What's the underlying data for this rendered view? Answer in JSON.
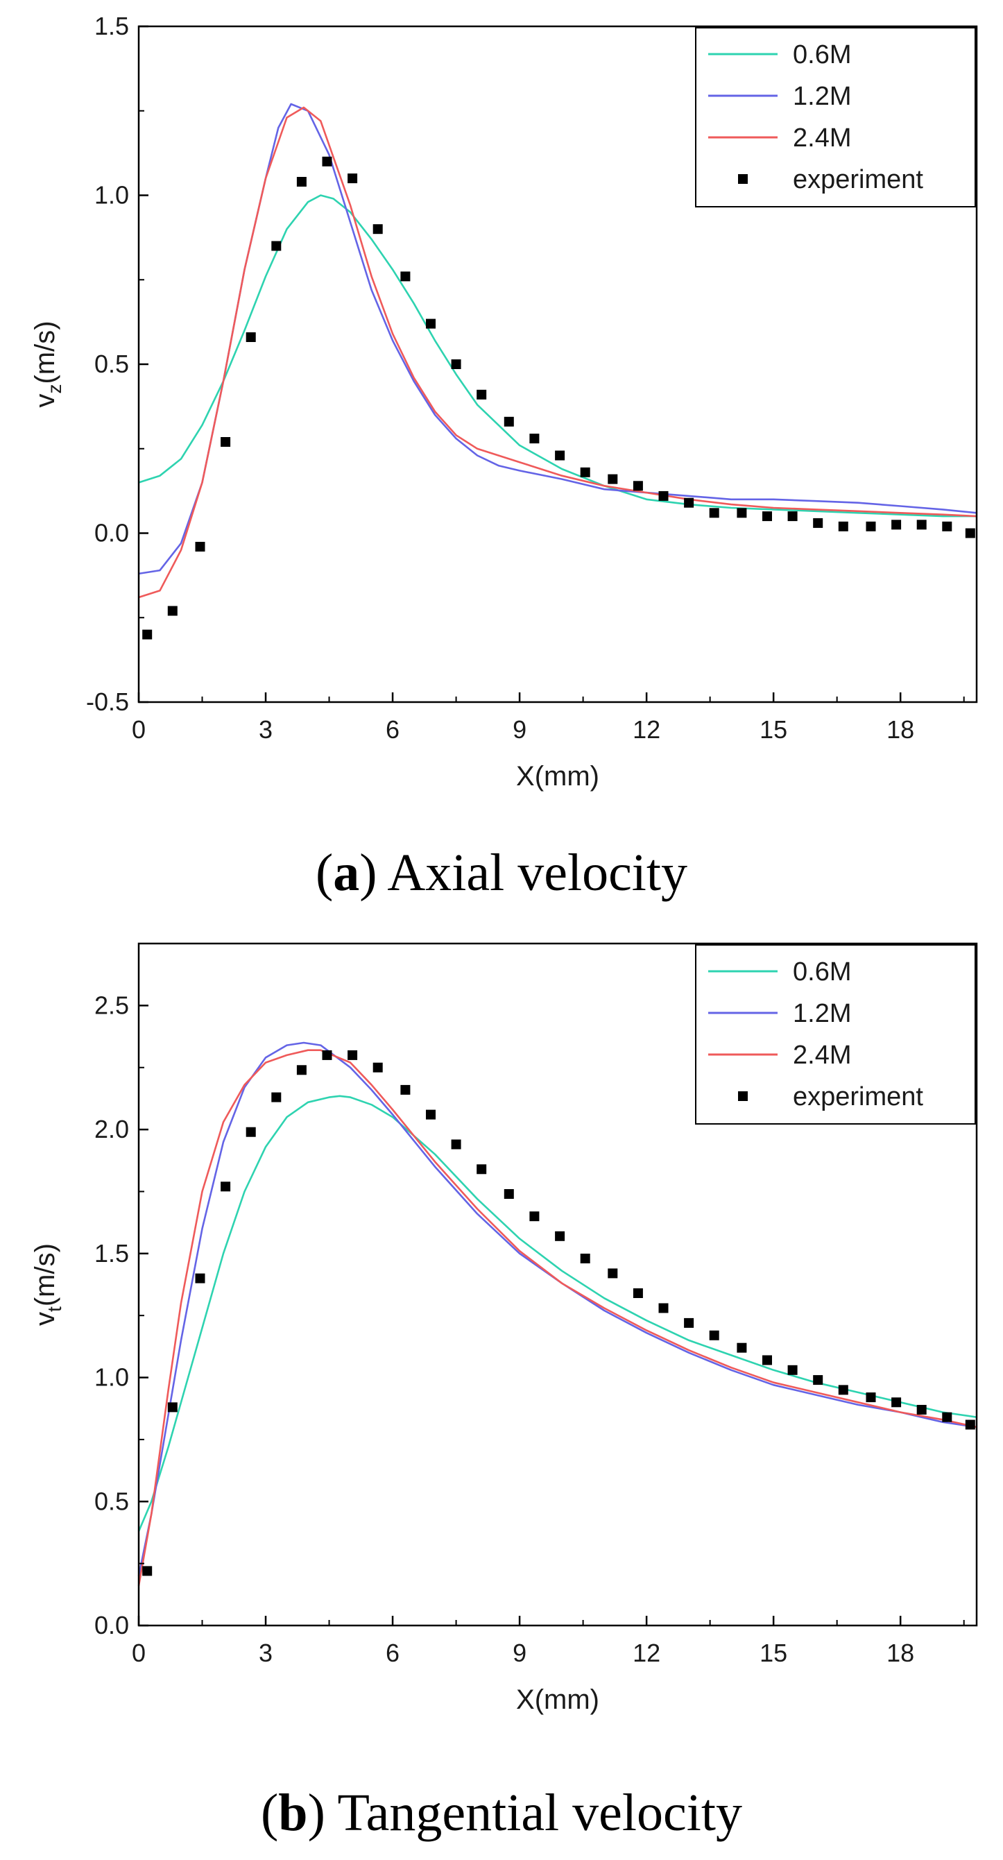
{
  "chart_data": [
    {
      "type": "line",
      "panel_id": "a",
      "caption": {
        "letter": "a",
        "text": "Axial velocity"
      },
      "xlabel": "X(mm)",
      "ylabel": {
        "base": "v",
        "sub": "z",
        "unit": "(m/s)"
      },
      "xlim": [
        0,
        19.8
      ],
      "ylim": [
        -0.5,
        1.5
      ],
      "xticks": [
        0,
        3,
        6,
        9,
        12,
        15,
        18
      ],
      "yticks": [
        -0.5,
        0.0,
        0.5,
        1.0,
        1.5
      ],
      "ytick_labels": [
        "-0.5",
        "0.0",
        "0.5",
        "1.0",
        "1.5"
      ],
      "legend": {
        "position": "top-right",
        "entries": [
          "0.6M",
          "1.2M",
          "2.4M",
          "experiment"
        ]
      },
      "series": [
        {
          "name": "0.6M",
          "color": "#2ed3b0",
          "x": [
            0,
            0.5,
            1,
            1.5,
            2,
            2.5,
            3,
            3.5,
            4,
            4.3,
            4.6,
            5,
            5.5,
            6,
            6.5,
            7,
            7.5,
            8,
            9,
            10,
            11,
            12,
            13,
            14,
            15,
            16,
            17,
            18,
            19,
            19.8
          ],
          "y": [
            0.15,
            0.17,
            0.22,
            0.32,
            0.45,
            0.6,
            0.76,
            0.9,
            0.98,
            1.0,
            0.99,
            0.95,
            0.87,
            0.78,
            0.68,
            0.57,
            0.47,
            0.38,
            0.26,
            0.19,
            0.14,
            0.1,
            0.085,
            0.075,
            0.07,
            0.065,
            0.06,
            0.055,
            0.05,
            0.05
          ]
        },
        {
          "name": "1.2M",
          "color": "#6464e6",
          "x": [
            0,
            0.5,
            1,
            1.5,
            2,
            2.5,
            3,
            3.3,
            3.6,
            4,
            4.5,
            5,
            5.5,
            6,
            6.5,
            7,
            7.5,
            8,
            8.5,
            9,
            10,
            11,
            12,
            13,
            14,
            15,
            16,
            17,
            18,
            19,
            19.8
          ],
          "y": [
            -0.12,
            -0.11,
            -0.03,
            0.15,
            0.45,
            0.78,
            1.05,
            1.2,
            1.27,
            1.25,
            1.12,
            0.92,
            0.72,
            0.57,
            0.45,
            0.35,
            0.28,
            0.23,
            0.2,
            0.185,
            0.16,
            0.13,
            0.12,
            0.11,
            0.1,
            0.1,
            0.095,
            0.09,
            0.08,
            0.07,
            0.06
          ]
        },
        {
          "name": "2.4M",
          "color": "#ef5a5a",
          "x": [
            0,
            0.5,
            1,
            1.5,
            2,
            2.5,
            3,
            3.5,
            3.9,
            4.3,
            5,
            5.5,
            6,
            6.5,
            7,
            7.5,
            8,
            8.5,
            9,
            10,
            11,
            12,
            13,
            14,
            15,
            16,
            17,
            18,
            19,
            19.8
          ],
          "y": [
            -0.19,
            -0.17,
            -0.05,
            0.15,
            0.45,
            0.78,
            1.05,
            1.23,
            1.26,
            1.22,
            0.97,
            0.76,
            0.59,
            0.46,
            0.36,
            0.29,
            0.25,
            0.23,
            0.21,
            0.17,
            0.14,
            0.12,
            0.1,
            0.085,
            0.075,
            0.07,
            0.065,
            0.06,
            0.055,
            0.05
          ]
        }
      ],
      "experiment": {
        "x": [
          0.2,
          0.8,
          1.45,
          2.05,
          2.65,
          3.25,
          3.85,
          4.45,
          5.05,
          5.65,
          6.3,
          6.9,
          7.5,
          8.1,
          8.75,
          9.35,
          9.95,
          10.55,
          11.2,
          11.8,
          12.4,
          13.0,
          13.6,
          14.25,
          14.85,
          15.45,
          16.05,
          16.65,
          17.3,
          17.9,
          18.5,
          19.1,
          19.65
        ],
        "y": [
          -0.3,
          -0.23,
          -0.04,
          0.27,
          0.58,
          0.85,
          1.04,
          1.1,
          1.05,
          0.9,
          0.76,
          0.62,
          0.5,
          0.41,
          0.33,
          0.28,
          0.23,
          0.18,
          0.16,
          0.14,
          0.11,
          0.09,
          0.06,
          0.06,
          0.05,
          0.05,
          0.03,
          0.02,
          0.02,
          0.025,
          0.025,
          0.02,
          0.0
        ]
      }
    },
    {
      "type": "line",
      "panel_id": "b",
      "caption": {
        "letter": "b",
        "text": "Tangential velocity"
      },
      "xlabel": "X(mm)",
      "ylabel": {
        "base": "v",
        "sub": "t",
        "unit": "(m/s)"
      },
      "xlim": [
        0,
        19.8
      ],
      "ylim": [
        0,
        2.75
      ],
      "xticks": [
        0,
        3,
        6,
        9,
        12,
        15,
        18
      ],
      "yticks": [
        0,
        0.5,
        1.0,
        1.5,
        2.0,
        2.5
      ],
      "ytick_labels": [
        "0.0",
        "0.5",
        "1.0",
        "1.5",
        "2.0",
        "2.5"
      ],
      "legend": {
        "position": "top-right",
        "entries": [
          "0.6M",
          "1.2M",
          "2.4M",
          "experiment"
        ]
      },
      "series": [
        {
          "name": "0.6M",
          "color": "#2ed3b0",
          "x": [
            0,
            0.3,
            0.7,
            1,
            1.5,
            2,
            2.5,
            3,
            3.5,
            4,
            4.5,
            4.75,
            5,
            5.5,
            6,
            7,
            8,
            9,
            10,
            11,
            12,
            13,
            14,
            15,
            16,
            17,
            18,
            19,
            19.8
          ],
          "y": [
            0.38,
            0.5,
            0.72,
            0.9,
            1.2,
            1.5,
            1.75,
            1.93,
            2.05,
            2.11,
            2.13,
            2.135,
            2.13,
            2.1,
            2.05,
            1.9,
            1.72,
            1.56,
            1.43,
            1.32,
            1.23,
            1.15,
            1.09,
            1.03,
            0.98,
            0.94,
            0.9,
            0.86,
            0.84
          ]
        },
        {
          "name": "1.2M",
          "color": "#6464e6",
          "x": [
            0,
            0.3,
            0.7,
            1,
            1.5,
            2,
            2.5,
            3,
            3.5,
            3.9,
            4.3,
            5,
            5.5,
            6,
            7,
            8,
            9,
            10,
            11,
            12,
            13,
            14,
            15,
            16,
            17,
            18,
            19,
            19.8
          ],
          "y": [
            0.2,
            0.45,
            0.85,
            1.15,
            1.6,
            1.95,
            2.17,
            2.29,
            2.34,
            2.35,
            2.34,
            2.25,
            2.16,
            2.06,
            1.85,
            1.66,
            1.5,
            1.38,
            1.27,
            1.18,
            1.1,
            1.03,
            0.97,
            0.93,
            0.89,
            0.86,
            0.82,
            0.8
          ]
        },
        {
          "name": "2.4M",
          "color": "#ef5a5a",
          "x": [
            0,
            0.3,
            0.7,
            1,
            1.5,
            2,
            2.5,
            3,
            3.5,
            4,
            4.3,
            5,
            5.5,
            6,
            7,
            8,
            9,
            10,
            11,
            12,
            13,
            14,
            15,
            16,
            17,
            18,
            19,
            19.8
          ],
          "y": [
            0.16,
            0.45,
            0.95,
            1.3,
            1.75,
            2.03,
            2.18,
            2.27,
            2.3,
            2.32,
            2.32,
            2.27,
            2.18,
            2.08,
            1.87,
            1.68,
            1.51,
            1.38,
            1.28,
            1.19,
            1.11,
            1.04,
            0.98,
            0.94,
            0.9,
            0.86,
            0.83,
            0.8
          ]
        }
      ],
      "experiment": {
        "x": [
          0.2,
          0.8,
          1.45,
          2.05,
          2.65,
          3.25,
          3.85,
          4.45,
          5.05,
          5.65,
          6.3,
          6.9,
          7.5,
          8.1,
          8.75,
          9.35,
          9.95,
          10.55,
          11.2,
          11.8,
          12.4,
          13.0,
          13.6,
          14.25,
          14.85,
          15.45,
          16.05,
          16.65,
          17.3,
          17.9,
          18.5,
          19.1,
          19.65
        ],
        "y": [
          0.22,
          0.88,
          1.4,
          1.77,
          1.99,
          2.13,
          2.24,
          2.3,
          2.3,
          2.25,
          2.16,
          2.06,
          1.94,
          1.84,
          1.74,
          1.65,
          1.57,
          1.48,
          1.42,
          1.34,
          1.28,
          1.22,
          1.17,
          1.12,
          1.07,
          1.03,
          0.99,
          0.95,
          0.92,
          0.9,
          0.87,
          0.84,
          0.81
        ]
      }
    }
  ]
}
